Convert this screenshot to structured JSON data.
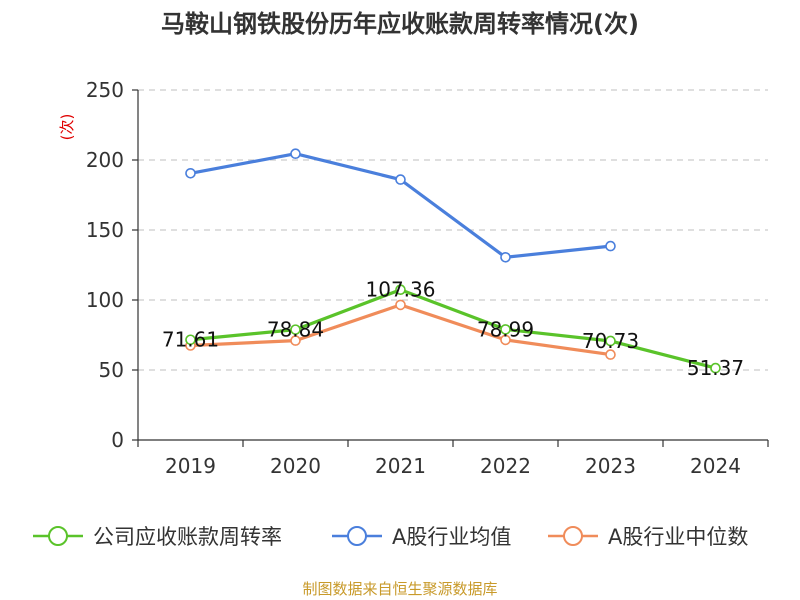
{
  "chart_data": {
    "type": "line",
    "title": "马鞍山钢铁股份历年应收账款周转率情况(次)",
    "ylabel": "(次)",
    "xlabel": "",
    "categories": [
      "2019",
      "2020",
      "2021",
      "2022",
      "2023",
      "2024"
    ],
    "ylim": [
      0,
      250
    ],
    "yticks": [
      0,
      50,
      100,
      150,
      200,
      250
    ],
    "grid": true,
    "legend_position": "bottom",
    "series": [
      {
        "name": "公司应收账款周转率",
        "color": "#5ac32a",
        "values": [
          71.61,
          78.84,
          107.36,
          78.99,
          70.73,
          51.37
        ],
        "labels": [
          "71.61",
          "78.84",
          "107.36",
          "78.99",
          "70.73",
          "51.37"
        ]
      },
      {
        "name": "A股行业均值",
        "color": "#4a7fdc",
        "values": [
          190.5,
          204.5,
          186.0,
          130.5,
          138.5,
          null
        ]
      },
      {
        "name": "A股行业中位数",
        "color": "#f08c5a",
        "values": [
          67.5,
          71.0,
          96.5,
          71.5,
          61.0,
          null
        ]
      }
    ]
  },
  "source_text": "制图数据来自恒生聚源数据库"
}
